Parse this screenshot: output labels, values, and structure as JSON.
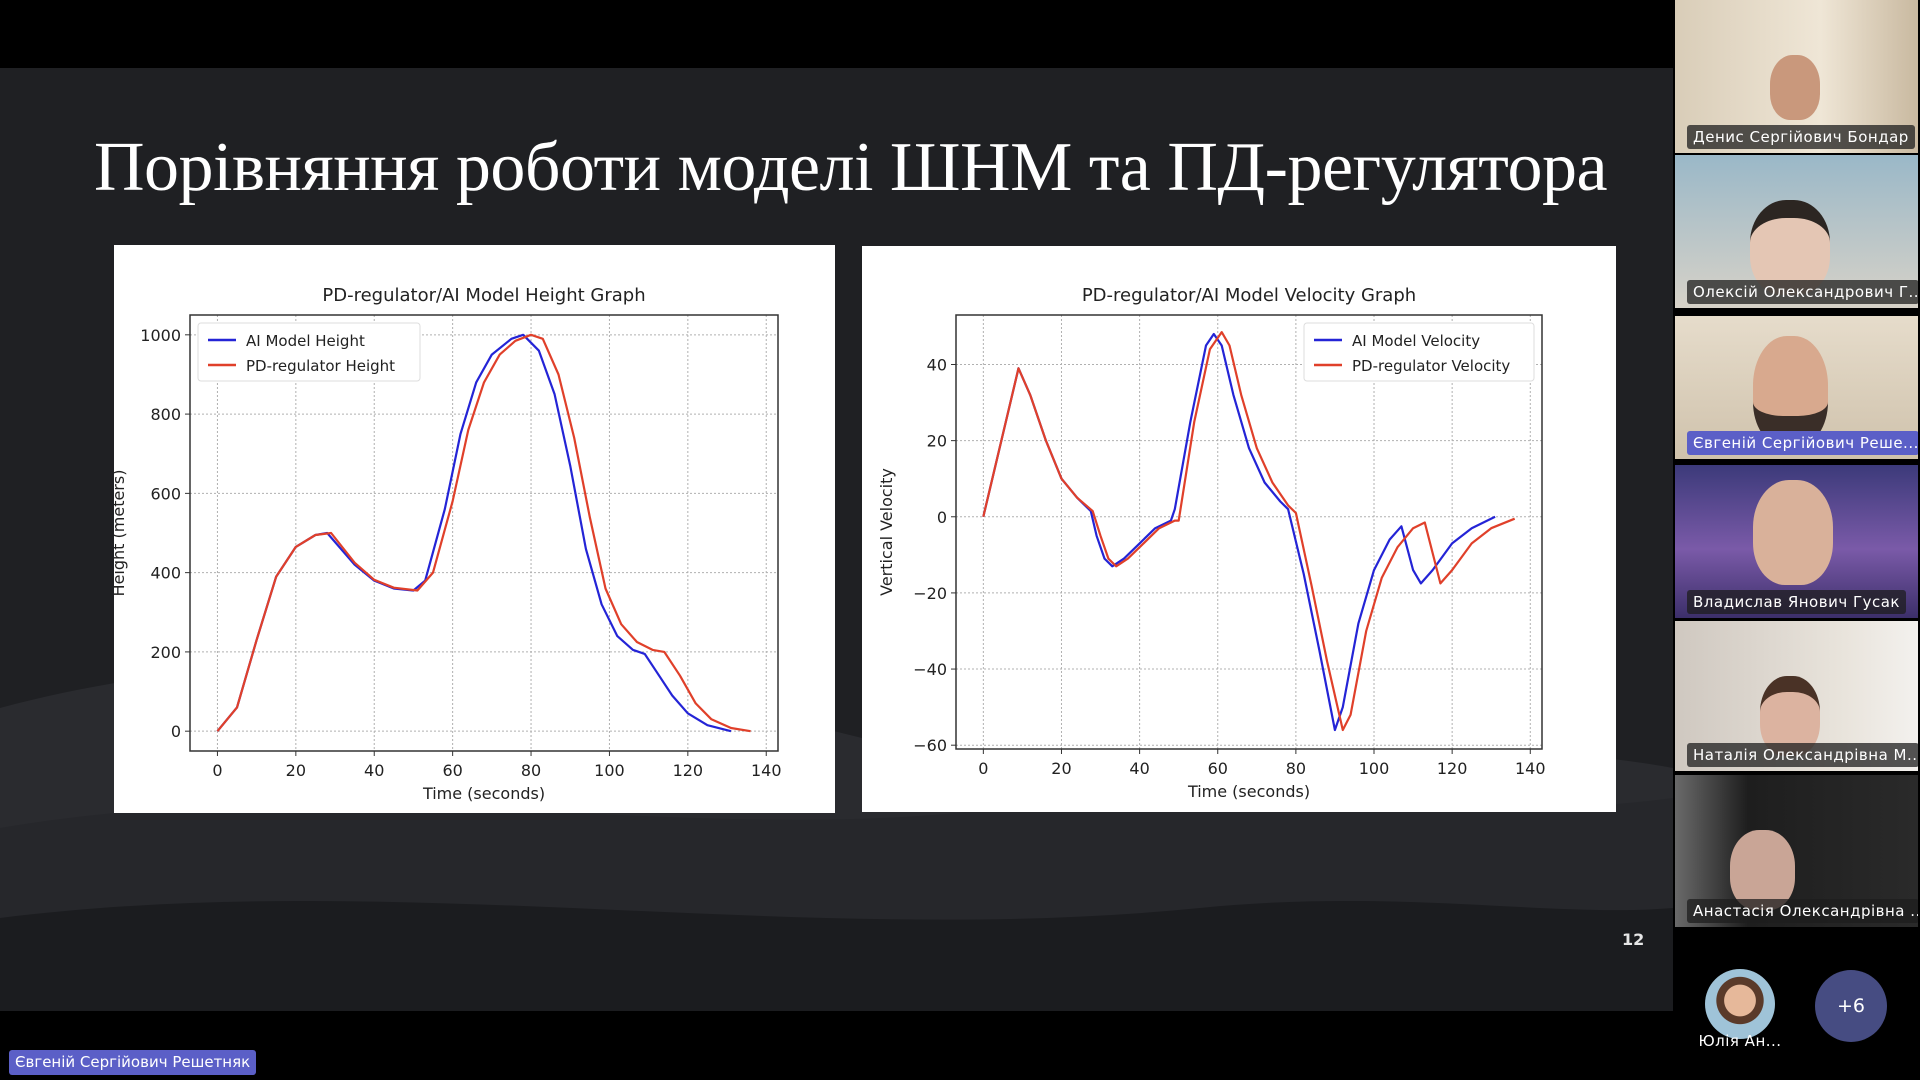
{
  "slide": {
    "title": "Порівняння роботи моделі ШНМ та ПД-регулятора",
    "page_number": "12"
  },
  "active_speaker": "Євгеній Сергійович Решетняк",
  "participants": [
    {
      "name": "Денис Сергійович Бондар",
      "active": false
    },
    {
      "name": "Олексій Олександрович Г...",
      "active": false
    },
    {
      "name": "Євгеній Сергійович Реше...",
      "active": true
    },
    {
      "name": "Владислав Янович Гусак",
      "active": false
    },
    {
      "name": "Наталія Олександрівна М...",
      "active": false
    },
    {
      "name": "Анастасія Олександрівна ...",
      "active": false
    }
  ],
  "extra_participant": {
    "name": "Юлія Ан..."
  },
  "more_participants": "+6",
  "colors": {
    "ai": "#2424d6",
    "pd": "#e0402a",
    "speaker_badge": "#5b5fc7"
  },
  "chart_data": [
    {
      "type": "line",
      "title": "PD-regulator/AI Model Height Graph",
      "xlabel": "Time (seconds)",
      "ylabel": "Height (meters)",
      "xlim": [
        -7,
        143
      ],
      "ylim": [
        -50,
        1050
      ],
      "xticks": [
        0,
        20,
        40,
        60,
        80,
        100,
        120,
        140
      ],
      "yticks": [
        0,
        200,
        400,
        600,
        800,
        1000
      ],
      "grid": true,
      "legend": "top-left",
      "series": [
        {
          "name": "AI Model Height",
          "color": "#2424d6",
          "points": [
            [
              0,
              0
            ],
            [
              5,
              60
            ],
            [
              10,
              230
            ],
            [
              15,
              390
            ],
            [
              20,
              465
            ],
            [
              25,
              495
            ],
            [
              28,
              500
            ],
            [
              35,
              420
            ],
            [
              40,
              380
            ],
            [
              45,
              360
            ],
            [
              50,
              355
            ],
            [
              53,
              380
            ],
            [
              58,
              560
            ],
            [
              62,
              750
            ],
            [
              66,
              880
            ],
            [
              70,
              950
            ],
            [
              75,
              990
            ],
            [
              78,
              1000
            ],
            [
              82,
              960
            ],
            [
              86,
              850
            ],
            [
              90,
              670
            ],
            [
              94,
              460
            ],
            [
              98,
              320
            ],
            [
              102,
              240
            ],
            [
              106,
              205
            ],
            [
              109,
              195
            ],
            [
              112,
              150
            ],
            [
              116,
              90
            ],
            [
              120,
              45
            ],
            [
              125,
              15
            ],
            [
              131,
              0
            ]
          ]
        },
        {
          "name": "PD-regulator Height",
          "color": "#e0402a",
          "points": [
            [
              0,
              0
            ],
            [
              5,
              60
            ],
            [
              10,
              230
            ],
            [
              15,
              390
            ],
            [
              20,
              465
            ],
            [
              25,
              495
            ],
            [
              29,
              500
            ],
            [
              35,
              425
            ],
            [
              40,
              382
            ],
            [
              45,
              362
            ],
            [
              51,
              355
            ],
            [
              55,
              400
            ],
            [
              60,
              580
            ],
            [
              64,
              760
            ],
            [
              68,
              880
            ],
            [
              72,
              950
            ],
            [
              76,
              985
            ],
            [
              80,
              1000
            ],
            [
              83,
              990
            ],
            [
              87,
              900
            ],
            [
              91,
              740
            ],
            [
              95,
              540
            ],
            [
              99,
              360
            ],
            [
              103,
              270
            ],
            [
              107,
              225
            ],
            [
              111,
              205
            ],
            [
              114,
              200
            ],
            [
              118,
              140
            ],
            [
              122,
              70
            ],
            [
              126,
              30
            ],
            [
              131,
              8
            ],
            [
              136,
              0
            ]
          ]
        }
      ]
    },
    {
      "type": "line",
      "title": "PD-regulator/AI Model Velocity Graph",
      "xlabel": "Time (seconds)",
      "ylabel": "Vertical Velocity",
      "xlim": [
        -7,
        143
      ],
      "ylim": [
        -61,
        53
      ],
      "xticks": [
        0,
        20,
        40,
        60,
        80,
        100,
        120,
        140
      ],
      "yticks": [
        -60,
        -40,
        -20,
        0,
        20,
        40
      ],
      "grid": true,
      "legend": "top-right",
      "series": [
        {
          "name": "AI Model Velocity",
          "color": "#2424d6",
          "points": [
            [
              0,
              0
            ],
            [
              9,
              39
            ],
            [
              12,
              32
            ],
            [
              16,
              20
            ],
            [
              20,
              10
            ],
            [
              24,
              5
            ],
            [
              27.5,
              1.5
            ],
            [
              29,
              -5
            ],
            [
              31,
              -11
            ],
            [
              33,
              -13
            ],
            [
              36,
              -11
            ],
            [
              40,
              -7
            ],
            [
              44,
              -3
            ],
            [
              48,
              -1
            ],
            [
              49,
              2
            ],
            [
              53,
              25
            ],
            [
              57,
              45
            ],
            [
              59,
              48
            ],
            [
              61,
              45
            ],
            [
              64,
              32
            ],
            [
              68,
              18
            ],
            [
              72,
              9
            ],
            [
              76,
              4
            ],
            [
              78,
              2
            ],
            [
              82,
              -15
            ],
            [
              86,
              -35
            ],
            [
              90,
              -56
            ],
            [
              92,
              -50
            ],
            [
              96,
              -28
            ],
            [
              100,
              -14
            ],
            [
              104,
              -6
            ],
            [
              107,
              -2.5
            ],
            [
              110,
              -14
            ],
            [
              112,
              -17.5
            ],
            [
              115,
              -14
            ],
            [
              120,
              -7
            ],
            [
              125,
              -3
            ],
            [
              131,
              0
            ]
          ]
        },
        {
          "name": "PD-regulator Velocity",
          "color": "#e0402a",
          "points": [
            [
              0,
              0
            ],
            [
              9,
              39
            ],
            [
              12,
              32
            ],
            [
              16,
              20
            ],
            [
              20,
              10
            ],
            [
              24,
              5
            ],
            [
              28,
              1.5
            ],
            [
              30,
              -5
            ],
            [
              32,
              -11
            ],
            [
              34,
              -13
            ],
            [
              37,
              -11
            ],
            [
              41,
              -7
            ],
            [
              45,
              -3
            ],
            [
              49,
              -1
            ],
            [
              50,
              -1
            ],
            [
              54,
              25
            ],
            [
              58,
              44
            ],
            [
              61,
              48.5
            ],
            [
              63,
              45
            ],
            [
              66,
              32
            ],
            [
              70,
              18
            ],
            [
              74,
              9
            ],
            [
              78,
              3
            ],
            [
              80,
              1
            ],
            [
              84,
              -18
            ],
            [
              88,
              -38
            ],
            [
              92,
              -56
            ],
            [
              94,
              -52
            ],
            [
              98,
              -30
            ],
            [
              102,
              -16
            ],
            [
              106,
              -8
            ],
            [
              110,
              -3
            ],
            [
              113,
              -1.5
            ],
            [
              117,
              -17.5
            ],
            [
              120,
              -14
            ],
            [
              125,
              -7
            ],
            [
              130,
              -3
            ],
            [
              136,
              -0.5
            ]
          ]
        }
      ]
    }
  ]
}
